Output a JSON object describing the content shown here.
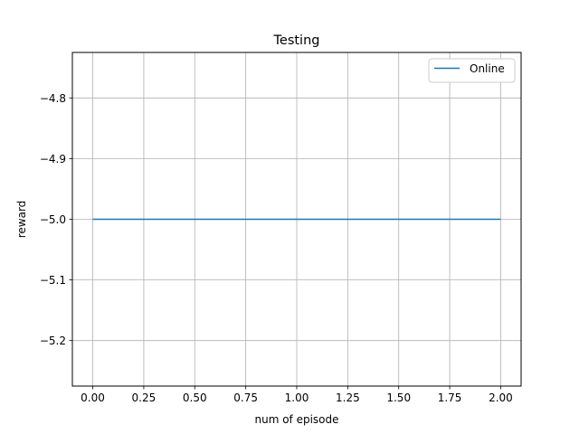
{
  "chart_data": {
    "type": "line",
    "title": "Testing",
    "xlabel": "num of episode",
    "ylabel": "reward",
    "xlim": [
      -0.1,
      2.1
    ],
    "ylim": [
      -5.275,
      -4.725
    ],
    "xticks": [
      0.0,
      0.25,
      0.5,
      0.75,
      1.0,
      1.25,
      1.5,
      1.75,
      2.0
    ],
    "xtick_labels": [
      "0.00",
      "0.25",
      "0.50",
      "0.75",
      "1.00",
      "1.25",
      "1.50",
      "1.75",
      "2.00"
    ],
    "yticks": [
      -5.2,
      -5.1,
      -5.0,
      -4.9,
      -4.8
    ],
    "ytick_labels": [
      "−5.2",
      "−5.1",
      "−5.0",
      "−4.9",
      "−4.8"
    ],
    "grid": true,
    "legend_position": "top-right",
    "series": [
      {
        "name": "Online",
        "color": "#1f77b4",
        "x": [
          0,
          1,
          2
        ],
        "values": [
          -5.0,
          -5.0,
          -5.0
        ]
      }
    ]
  }
}
